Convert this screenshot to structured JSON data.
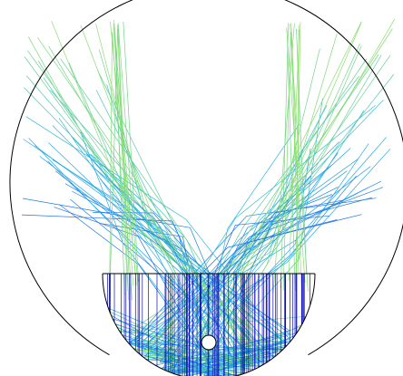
{
  "colors": {
    "background": "#ffffff",
    "outer_boundary": "#000000",
    "mirror_boundary": "#000000",
    "vertical_rays": "#1010b0",
    "reflected_inner": "#1d5fe8",
    "reflected_mid": "#27b6e6",
    "reflected_outer": "#8ee06a",
    "hole_fill": "#ffffff",
    "hole_stroke": "#000000"
  },
  "ray_pattern": {
    "vertical_ray_count": 90,
    "reflected_ray_count": 90,
    "mirror_chord_present": true,
    "central_hole_present": true
  }
}
